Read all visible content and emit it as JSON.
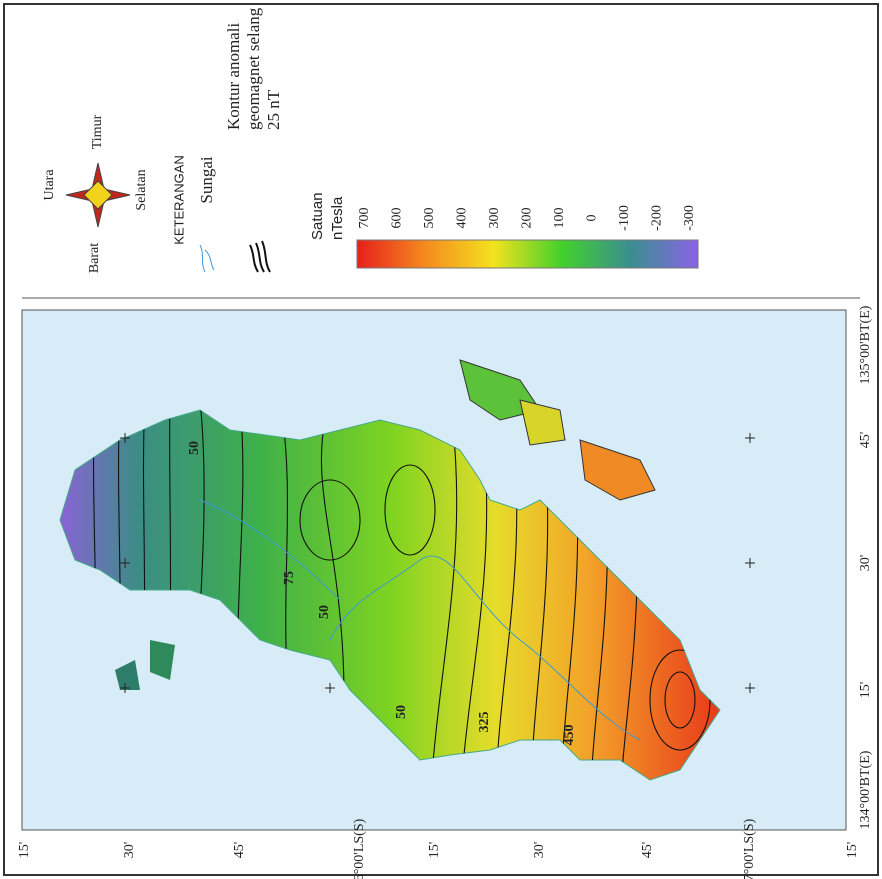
{
  "compass": {
    "north": "Utara",
    "east": "Timur",
    "south": "Selatan",
    "west": "Barat"
  },
  "legend": {
    "title": "KETERANGAN",
    "river": "Sungai",
    "contour": [
      "Kontur anomali",
      "geomagnet selang",
      "25 nT"
    ],
    "unit": [
      "Satuan",
      "nTesla"
    ],
    "scale": [
      700,
      600,
      500,
      400,
      300,
      200,
      100,
      0,
      -100,
      -200,
      -300
    ]
  },
  "latitude_labels": [
    "15'",
    "30'",
    "45'",
    "6°00'LS(S)",
    "15'",
    "30'",
    "45'",
    "7°00'LS(S)",
    "15'"
  ],
  "longitude_labels": [
    "135°00'BT(E)",
    "45'",
    "30'",
    "15'",
    "134°00'BT(E)"
  ],
  "contour_labels": [
    "75",
    "50",
    "50",
    "50",
    "325",
    "450"
  ]
}
